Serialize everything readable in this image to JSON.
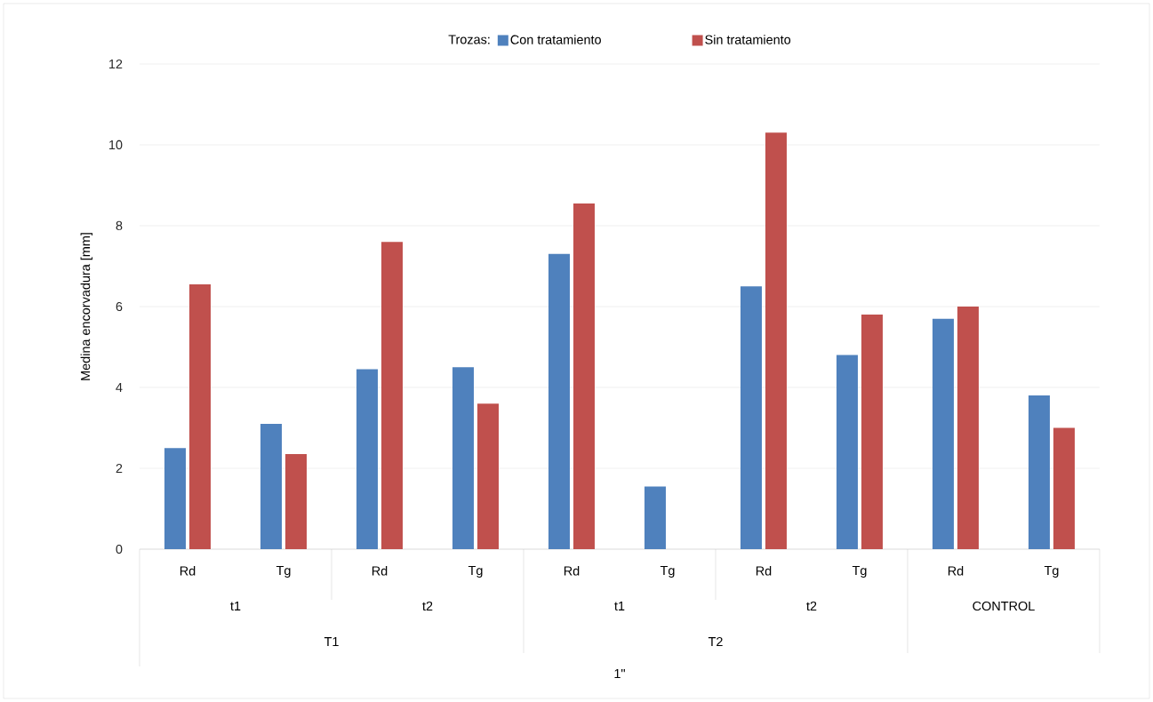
{
  "chart_data": {
    "type": "bar",
    "ylabel": "Medina encorvadura [mm]",
    "legend_title": "Trozas:",
    "categories": [
      "Rd",
      "Tg",
      "Rd",
      "Tg",
      "Rd",
      "Tg",
      "Rd",
      "Tg",
      "Rd",
      "Tg"
    ],
    "annotations": [
      "t1",
      "t2",
      "t1",
      "t2",
      "CONTROL",
      "T1",
      "T2",
      "1\""
    ],
    "series": [
      {
        "name": "Con tratamiento",
        "color": "#4f81bd",
        "values": [
          2.5,
          3.1,
          4.45,
          4.5,
          7.3,
          1.55,
          6.5,
          4.8,
          5.7,
          3.8
        ]
      },
      {
        "name": "Sin tratamiento",
        "color": "#c0504d",
        "values": [
          6.55,
          2.35,
          7.6,
          3.6,
          8.55,
          null,
          10.3,
          5.8,
          6.0,
          3.0
        ]
      }
    ],
    "ylim": [
      0,
      12
    ],
    "yticks": [
      0,
      2,
      4,
      6,
      8,
      10,
      12
    ],
    "grid": "y",
    "legend": "top"
  }
}
